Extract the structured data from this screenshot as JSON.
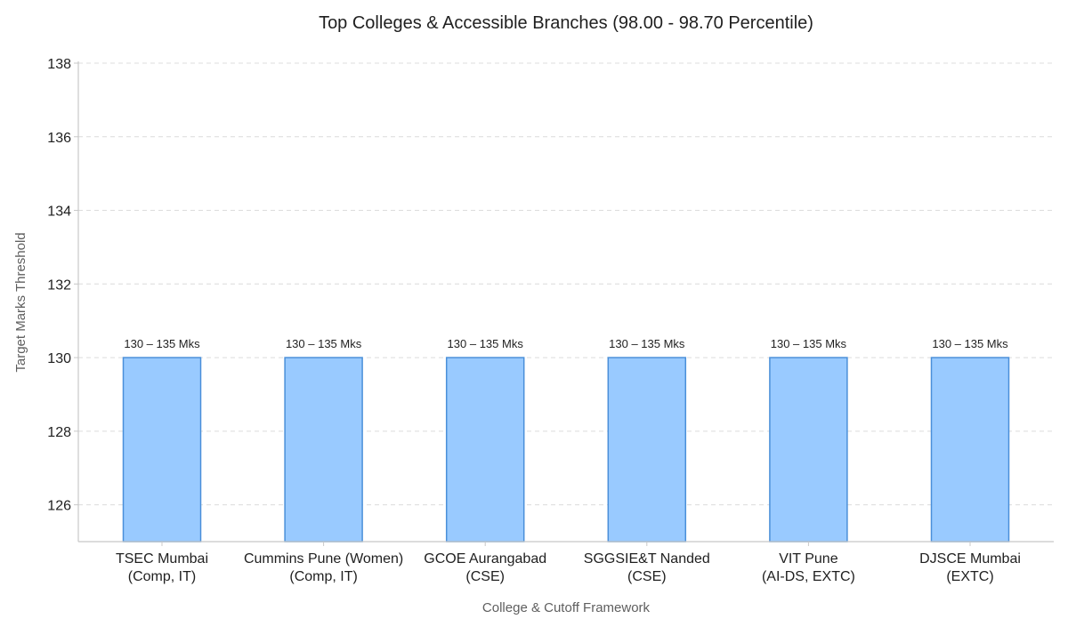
{
  "chart_data": {
    "type": "bar",
    "title": "Top Colleges & Accessible Branches (98.00 - 98.70 Percentile)",
    "xlabel": "College & Cutoff Framework",
    "ylabel": "Target Marks Threshold",
    "ylim": [
      125,
      138
    ],
    "yticks": [
      126,
      128,
      130,
      132,
      134,
      136,
      138
    ],
    "grid": true,
    "categories": [
      [
        "TSEC Mumbai",
        "(Comp, IT)"
      ],
      [
        "Cummins Pune (Women)",
        "(Comp, IT)"
      ],
      [
        "GCOE Aurangabad",
        "(CSE)"
      ],
      [
        "SGGSIE&T Nanded",
        "(CSE)"
      ],
      [
        "VIT Pune",
        "(AI-DS, EXTC)"
      ],
      [
        "DJSCE Mumbai",
        "(EXTC)"
      ]
    ],
    "values": [
      130,
      130,
      130,
      130,
      130,
      130
    ],
    "data_labels": [
      "130 – 135 Mks",
      "130 – 135 Mks",
      "130 – 135 Mks",
      "130 – 135 Mks",
      "130 – 135 Mks",
      "130 – 135 Mks"
    ],
    "colors": {
      "bar_fill": "#99caff",
      "bar_edge": "#4a8fd9"
    }
  }
}
